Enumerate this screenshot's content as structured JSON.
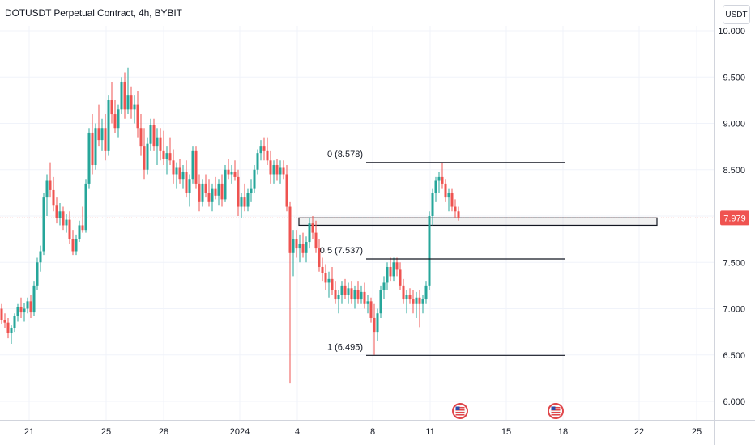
{
  "header": {
    "symbol_title": "DOTUSDT Perpetual Contract, 4h, BYBIT",
    "currency_label": "USDT"
  },
  "colors": {
    "up": "#26a69a",
    "down": "#ef5350",
    "grid": "#f0f3fa",
    "axis_text": "#131722",
    "price_line": "#ef5350",
    "event_badge": "#e0464a"
  },
  "chart_data": {
    "type": "candlestick",
    "title": "DOTUSDT Perpetual Contract, 4h, BYBIT",
    "ylim": [
      5.85,
      10.15
    ],
    "y_ticks": [
      "6.000",
      "6.500",
      "7.000",
      "7.500",
      "8.000",
      "8.500",
      "9.000",
      "9.500",
      "10.000"
    ],
    "x_range": [
      0,
      931
    ],
    "x_ticks": [
      {
        "label": "21",
        "x": 36
      },
      {
        "label": "25",
        "x": 131
      },
      {
        "label": "28",
        "x": 202
      },
      {
        "label": "2024",
        "x": 296
      },
      {
        "label": "4",
        "x": 367
      },
      {
        "label": "8",
        "x": 460
      },
      {
        "label": "11",
        "x": 531
      },
      {
        "label": "15",
        "x": 625
      },
      {
        "label": "18",
        "x": 695
      },
      {
        "label": "22",
        "x": 789
      },
      {
        "label": "25",
        "x": 860
      }
    ],
    "last_price": "7.979",
    "last_price_value": 7.979,
    "fib_levels": [
      {
        "label": "0 (8.578)",
        "price": 8.578,
        "x_start": 452,
        "x_end": 697
      },
      {
        "label": "0.5 (7.537)",
        "price": 7.537,
        "x_start": 452,
        "x_end": 697
      },
      {
        "label": "1 (6.495)",
        "price": 6.495,
        "x_start": 452,
        "x_end": 697
      }
    ],
    "zone": {
      "x_start": 369,
      "x_end": 811,
      "top": 7.98,
      "bottom": 7.9
    },
    "events": [
      {
        "x": 568
      },
      {
        "x": 686
      }
    ],
    "candles": [
      [
        2,
        7.0,
        7.05,
        6.84,
        6.88
      ],
      [
        6,
        6.88,
        6.95,
        6.79,
        6.85
      ],
      [
        10,
        6.85,
        6.9,
        6.68,
        6.74
      ],
      [
        14,
        6.74,
        6.82,
        6.62,
        6.79
      ],
      [
        18,
        6.79,
        6.95,
        6.75,
        6.92
      ],
      [
        22,
        6.92,
        7.05,
        6.86,
        7.02
      ],
      [
        26,
        7.02,
        7.12,
        6.9,
        6.96
      ],
      [
        30,
        6.96,
        7.06,
        6.86,
        7.0
      ],
      [
        34,
        7.0,
        7.12,
        6.95,
        7.08
      ],
      [
        38,
        7.08,
        7.15,
        6.9,
        6.96
      ],
      [
        42,
        6.96,
        7.3,
        6.92,
        7.25
      ],
      [
        46,
        7.25,
        7.55,
        7.2,
        7.5
      ],
      [
        50,
        7.5,
        7.68,
        7.4,
        7.62
      ],
      [
        54,
        7.62,
        8.25,
        7.58,
        8.2
      ],
      [
        58,
        8.2,
        8.45,
        8.0,
        8.38
      ],
      [
        62,
        8.38,
        8.58,
        8.2,
        8.28
      ],
      [
        66,
        8.28,
        8.42,
        8.05,
        8.12
      ],
      [
        70,
        8.12,
        8.2,
        7.92,
        7.98
      ],
      [
        74,
        7.98,
        8.14,
        7.9,
        8.05
      ],
      [
        78,
        8.05,
        8.1,
        7.85,
        7.9
      ],
      [
        82,
        7.9,
        8.02,
        7.82,
        7.96
      ],
      [
        86,
        7.96,
        8.05,
        7.7,
        7.75
      ],
      [
        90,
        7.75,
        7.85,
        7.58,
        7.62
      ],
      [
        94,
        7.62,
        7.8,
        7.58,
        7.75
      ],
      [
        98,
        7.75,
        7.95,
        7.72,
        7.9
      ],
      [
        102,
        7.9,
        8.1,
        7.82,
        7.85
      ],
      [
        106,
        7.85,
        8.4,
        7.82,
        8.35
      ],
      [
        110,
        8.35,
        8.95,
        8.3,
        8.9
      ],
      [
        114,
        8.9,
        9.1,
        8.45,
        8.55
      ],
      [
        118,
        8.55,
        9.0,
        8.5,
        8.95
      ],
      [
        122,
        8.95,
        9.2,
        8.75,
        8.82
      ],
      [
        126,
        8.82,
        9.05,
        8.7,
        8.95
      ],
      [
        130,
        8.95,
        9.1,
        8.6,
        8.7
      ],
      [
        134,
        8.7,
        9.3,
        8.65,
        9.25
      ],
      [
        138,
        9.25,
        9.45,
        9.0,
        9.1
      ],
      [
        142,
        9.1,
        9.25,
        8.9,
        8.95
      ],
      [
        146,
        8.95,
        9.2,
        8.85,
        9.15
      ],
      [
        150,
        9.15,
        9.5,
        9.1,
        9.45
      ],
      [
        154,
        9.45,
        9.55,
        9.05,
        9.15
      ],
      [
        158,
        9.15,
        9.6,
        9.1,
        9.3
      ],
      [
        162,
        9.3,
        9.4,
        9.05,
        9.15
      ],
      [
        166,
        9.15,
        9.3,
        9.0,
        9.2
      ],
      [
        170,
        9.2,
        9.35,
        8.85,
        8.95
      ],
      [
        174,
        8.95,
        9.1,
        8.65,
        8.75
      ],
      [
        178,
        8.75,
        8.95,
        8.4,
        8.5
      ],
      [
        182,
        8.5,
        8.85,
        8.45,
        8.78
      ],
      [
        186,
        8.78,
        9.05,
        8.7,
        8.98
      ],
      [
        190,
        8.98,
        9.05,
        8.7,
        8.75
      ],
      [
        194,
        8.75,
        8.95,
        8.55,
        8.85
      ],
      [
        198,
        8.85,
        8.95,
        8.6,
        8.7
      ],
      [
        202,
        8.7,
        8.92,
        8.55,
        8.62
      ],
      [
        206,
        8.62,
        8.75,
        8.45,
        8.68
      ],
      [
        210,
        8.68,
        8.85,
        8.55,
        8.6
      ],
      [
        214,
        8.6,
        8.72,
        8.35,
        8.45
      ],
      [
        218,
        8.45,
        8.58,
        8.3,
        8.52
      ],
      [
        222,
        8.52,
        8.62,
        8.35,
        8.4
      ],
      [
        226,
        8.4,
        8.55,
        8.3,
        8.48
      ],
      [
        230,
        8.48,
        8.6,
        8.2,
        8.25
      ],
      [
        234,
        8.25,
        8.45,
        8.1,
        8.4
      ],
      [
        238,
        8.4,
        8.75,
        8.35,
        8.7
      ],
      [
        242,
        8.7,
        8.75,
        8.3,
        8.35
      ],
      [
        246,
        8.35,
        8.45,
        8.05,
        8.15
      ],
      [
        250,
        8.15,
        8.4,
        8.1,
        8.35
      ],
      [
        254,
        8.35,
        8.45,
        8.2,
        8.25
      ],
      [
        258,
        8.25,
        8.4,
        8.1,
        8.15
      ],
      [
        262,
        8.15,
        8.35,
        8.05,
        8.3
      ],
      [
        266,
        8.3,
        8.42,
        8.18,
        8.22
      ],
      [
        270,
        8.22,
        8.4,
        8.12,
        8.35
      ],
      [
        274,
        8.35,
        8.45,
        8.1,
        8.18
      ],
      [
        278,
        8.18,
        8.55,
        8.15,
        8.5
      ],
      [
        282,
        8.5,
        8.62,
        8.4,
        8.45
      ],
      [
        286,
        8.45,
        8.55,
        8.35,
        8.48
      ],
      [
        290,
        8.48,
        8.6,
        8.38,
        8.42
      ],
      [
        294,
        8.42,
        8.5,
        8.0,
        8.1
      ],
      [
        298,
        8.1,
        8.25,
        7.98,
        8.2
      ],
      [
        302,
        8.2,
        8.35,
        8.05,
        8.1
      ],
      [
        306,
        8.1,
        8.3,
        8.05,
        8.25
      ],
      [
        310,
        8.25,
        8.4,
        8.15,
        8.3
      ],
      [
        314,
        8.3,
        8.55,
        8.25,
        8.5
      ],
      [
        318,
        8.5,
        8.72,
        8.45,
        8.68
      ],
      [
        322,
        8.68,
        8.82,
        8.6,
        8.75
      ],
      [
        326,
        8.75,
        8.85,
        8.6,
        8.7
      ],
      [
        330,
        8.7,
        8.85,
        8.55,
        8.6
      ],
      [
        334,
        8.6,
        8.7,
        8.35,
        8.45
      ],
      [
        338,
        8.45,
        8.6,
        8.35,
        8.55
      ],
      [
        342,
        8.55,
        8.62,
        8.38,
        8.45
      ],
      [
        346,
        8.45,
        8.6,
        8.35,
        8.52
      ],
      [
        350,
        8.52,
        8.6,
        8.4,
        8.45
      ],
      [
        354,
        8.45,
        8.55,
        8.05,
        8.1
      ],
      [
        358,
        8.1,
        8.15,
        6.2,
        7.6
      ],
      [
        362,
        7.6,
        7.85,
        7.35,
        7.75
      ],
      [
        366,
        7.75,
        7.85,
        7.55,
        7.65
      ],
      [
        370,
        7.65,
        7.8,
        7.5,
        7.7
      ],
      [
        374,
        7.7,
        7.82,
        7.55,
        7.6
      ],
      [
        378,
        7.6,
        7.78,
        7.5,
        7.72
      ],
      [
        382,
        7.72,
        7.98,
        7.65,
        7.92
      ],
      [
        386,
        7.92,
        8.0,
        7.75,
        7.82
      ],
      [
        390,
        7.82,
        7.95,
        7.6,
        7.65
      ],
      [
        394,
        7.65,
        7.75,
        7.4,
        7.45
      ],
      [
        398,
        7.45,
        7.55,
        7.3,
        7.38
      ],
      [
        402,
        7.38,
        7.48,
        7.2,
        7.28
      ],
      [
        406,
        7.28,
        7.4,
        7.12,
        7.32
      ],
      [
        410,
        7.32,
        7.45,
        7.15,
        7.2
      ],
      [
        414,
        7.2,
        7.3,
        7.05,
        7.1
      ],
      [
        418,
        7.1,
        7.2,
        6.95,
        7.15
      ],
      [
        422,
        7.15,
        7.3,
        7.05,
        7.25
      ],
      [
        426,
        7.25,
        7.32,
        7.1,
        7.15
      ],
      [
        430,
        7.15,
        7.28,
        7.05,
        7.22
      ],
      [
        434,
        7.22,
        7.3,
        7.05,
        7.1
      ],
      [
        438,
        7.1,
        7.25,
        7.0,
        7.2
      ],
      [
        442,
        7.2,
        7.3,
        7.05,
        7.1
      ],
      [
        446,
        7.1,
        7.25,
        7.05,
        7.18
      ],
      [
        450,
        7.18,
        7.28,
        7.0,
        7.05
      ],
      [
        454,
        7.05,
        7.15,
        6.95,
        7.08
      ],
      [
        458,
        7.08,
        7.12,
        6.85,
        6.9
      ],
      [
        462,
        6.9,
        7.05,
        6.5,
        6.75
      ],
      [
        466,
        6.75,
        7.0,
        6.65,
        6.95
      ],
      [
        470,
        6.95,
        7.25,
        6.9,
        7.2
      ],
      [
        474,
        7.2,
        7.35,
        7.1,
        7.28
      ],
      [
        478,
        7.28,
        7.5,
        7.2,
        7.45
      ],
      [
        482,
        7.45,
        7.55,
        7.3,
        7.35
      ],
      [
        486,
        7.35,
        7.55,
        7.3,
        7.5
      ],
      [
        490,
        7.5,
        7.55,
        7.35,
        7.42
      ],
      [
        494,
        7.42,
        7.5,
        7.2,
        7.25
      ],
      [
        498,
        7.25,
        7.32,
        7.05,
        7.1
      ],
      [
        502,
        7.1,
        7.2,
        6.95,
        7.15
      ],
      [
        506,
        7.15,
        7.22,
        7.05,
        7.1
      ],
      [
        510,
        7.1,
        7.2,
        6.95,
        7.05
      ],
      [
        514,
        7.05,
        7.18,
        6.9,
        7.12
      ],
      [
        518,
        7.12,
        7.2,
        6.8,
        7.05
      ],
      [
        522,
        7.05,
        7.15,
        6.95,
        7.1
      ],
      [
        526,
        7.1,
        7.3,
        7.05,
        7.25
      ],
      [
        530,
        7.25,
        8.05,
        7.2,
        8.0
      ],
      [
        534,
        8.0,
        8.3,
        7.9,
        8.25
      ],
      [
        538,
        8.25,
        8.42,
        8.15,
        8.38
      ],
      [
        542,
        8.38,
        8.48,
        8.25,
        8.42
      ],
      [
        546,
        8.42,
        8.578,
        8.3,
        8.35
      ],
      [
        550,
        8.35,
        8.4,
        8.15,
        8.2
      ],
      [
        554,
        8.2,
        8.3,
        8.05,
        8.25
      ],
      [
        558,
        8.25,
        8.3,
        8.05,
        8.1
      ],
      [
        562,
        8.1,
        8.18,
        7.98,
        8.05
      ],
      [
        566,
        8.05,
        8.1,
        7.95,
        7.979
      ]
    ]
  }
}
